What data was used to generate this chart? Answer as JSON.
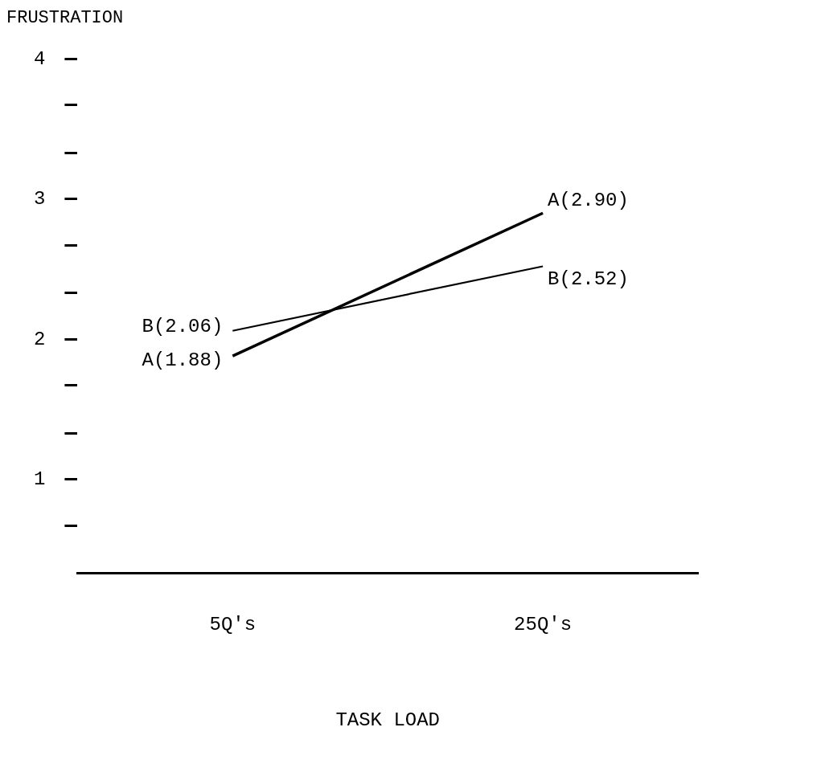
{
  "chart_data": {
    "type": "line",
    "ylabel": "FRUSTRATION",
    "xlabel": "TASK LOAD",
    "categories": [
      "5Q's",
      "25Q's"
    ],
    "series": [
      {
        "name": "A",
        "color": "#000000",
        "values": [
          1.88,
          2.9
        ],
        "value_labels": [
          "(1.88)",
          "(2.90)"
        ]
      },
      {
        "name": "B",
        "color": "#000000",
        "values": [
          2.06,
          2.52
        ],
        "value_labels": [
          "(2.06)",
          "(2.52)"
        ]
      }
    ],
    "ylim": [
      0.33,
      4
    ],
    "yticks": [
      {
        "value": 0.67,
        "label": null
      },
      1,
      {
        "value": 1.33,
        "label": null
      },
      {
        "value": 1.67,
        "label": null
      },
      2,
      {
        "value": 2.33,
        "label": null
      },
      {
        "value": 2.67,
        "label": null
      },
      3,
      {
        "value": 3.33,
        "label": null
      },
      {
        "value": 3.67,
        "label": null
      },
      4
    ],
    "grid": false,
    "legend": false,
    "marker": "none",
    "line_style": "solid"
  }
}
